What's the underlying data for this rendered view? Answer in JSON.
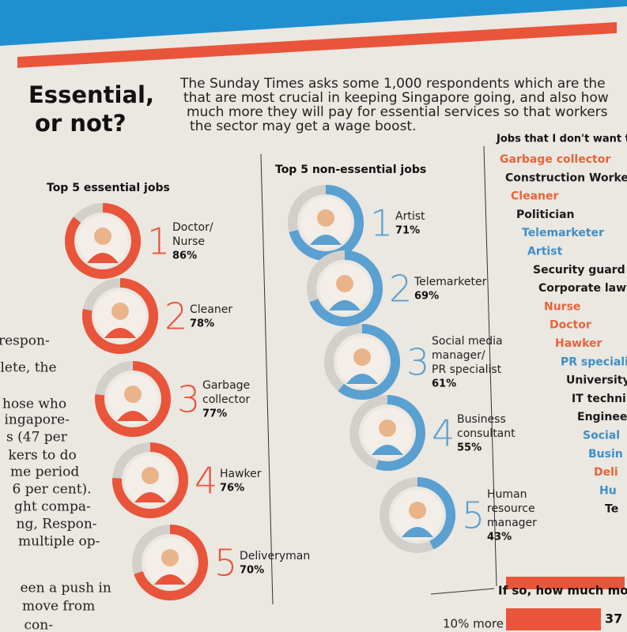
{
  "header": {
    "title_lines": [
      "Essential,",
      "or not?"
    ],
    "intro_lines": [
      "The Sunday Times asks some 1,000 respondents which are the",
      "that are most crucial in keeping Singapore going, and also how",
      "much more they will pay for essential services so that workers",
      "the sector may get a wage boost."
    ]
  },
  "essential": {
    "heading": "Top 5 essential jobs",
    "items": [
      {
        "rank": 1,
        "label_lines": [
          "Doctor/",
          "Nurse"
        ],
        "value": 86,
        "value_label": "86%"
      },
      {
        "rank": 2,
        "label_lines": [
          "Cleaner"
        ],
        "value": 78,
        "value_label": "78%"
      },
      {
        "rank": 3,
        "label_lines": [
          "Garbage",
          "collector"
        ],
        "value": 77,
        "value_label": "77%"
      },
      {
        "rank": 4,
        "label_lines": [
          "Hawker"
        ],
        "value": 76,
        "value_label": "76%"
      },
      {
        "rank": 5,
        "label_lines": [
          "Deliveryman"
        ],
        "value": 70,
        "value_label": "70%"
      }
    ]
  },
  "non_essential": {
    "heading": "Top 5 non-essential jobs",
    "items": [
      {
        "rank": 1,
        "label_lines": [
          "Artist"
        ],
        "value": 71,
        "value_label": "71%"
      },
      {
        "rank": 2,
        "label_lines": [
          "Telemarketer"
        ],
        "value": 69,
        "value_label": "69%"
      },
      {
        "rank": 3,
        "label_lines": [
          "Social media",
          "manager/",
          "PR specialist"
        ],
        "value": 61,
        "value_label": "61%"
      },
      {
        "rank": 4,
        "label_lines": [
          "Business",
          "consultant"
        ],
        "value": 55,
        "value_label": "55%"
      },
      {
        "rank": 5,
        "label_lines": [
          "Human",
          "resource",
          "manager"
        ],
        "value": 43,
        "value_label": "43%"
      }
    ]
  },
  "dont_want": {
    "heading": "Jobs that I don't want to d",
    "items": [
      {
        "text": "Garbage collector",
        "color": "#e8643a"
      },
      {
        "text": "Construction Worker",
        "color": "#1a1a1a"
      },
      {
        "text": "Cleaner",
        "color": "#e8643a"
      },
      {
        "text": "Politician",
        "color": "#1a1a1a"
      },
      {
        "text": "Telemarketer",
        "color": "#3d8fc6"
      },
      {
        "text": "Artist",
        "color": "#3d8fc6"
      },
      {
        "text": "Security guard",
        "color": "#1a1a1a"
      },
      {
        "text": "Corporate lawy",
        "color": "#1a1a1a"
      },
      {
        "text": "Nurse",
        "color": "#e8643a"
      },
      {
        "text": "Doctor",
        "color": "#e8643a"
      },
      {
        "text": "Hawker",
        "color": "#e8643a"
      },
      {
        "text": "PR speciali",
        "color": "#3d8fc6"
      },
      {
        "text": "University",
        "color": "#1a1a1a"
      },
      {
        "text": "IT techni",
        "color": "#1a1a1a"
      },
      {
        "text": "Enginee",
        "color": "#1a1a1a"
      },
      {
        "text": "Social",
        "color": "#3d8fc6"
      },
      {
        "text": "Busin",
        "color": "#3d8fc6"
      },
      {
        "text": "Deli",
        "color": "#e8643a"
      },
      {
        "text": "Hu",
        "color": "#3d8fc6"
      },
      {
        "text": "Te",
        "color": "#1a1a1a"
      }
    ]
  },
  "side_text": {
    "lines": [
      "respon-",
      "lete, the",
      "hose who",
      "ingapore-",
      "s (47 per",
      "kers to do",
      "me period",
      "6 per cent).",
      "ght compa-",
      "ng, Respon-",
      "multiple op-",
      "een a push in",
      "move from",
      "con-"
    ]
  },
  "bottom": {
    "question": "If so, how much more?",
    "row_label": "10% more",
    "row_value": "37"
  }
}
